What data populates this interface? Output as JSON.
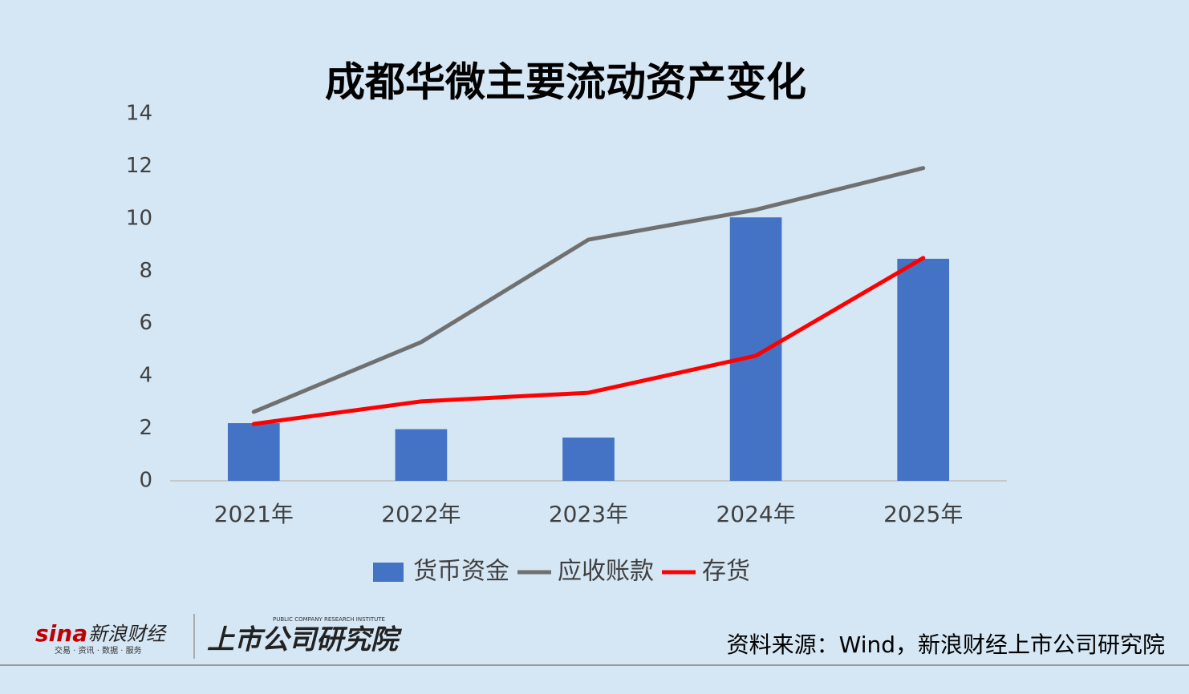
{
  "chart_data": {
    "type": "bar",
    "title": "成都华微主要流动资产变化",
    "categories": [
      "2021年",
      "2022年",
      "2023年",
      "2024年",
      "2025年"
    ],
    "series": [
      {
        "name": "货币资金",
        "type": "bar",
        "color": "#4472c4",
        "values": [
          2.2,
          1.97,
          1.65,
          10.05,
          8.47
        ]
      },
      {
        "name": "应收账款",
        "type": "line",
        "color": "#707070",
        "values": [
          2.63,
          5.29,
          9.2,
          10.34,
          11.93
        ]
      },
      {
        "name": "存货",
        "type": "line",
        "color": "#ff0000",
        "values": [
          2.17,
          3.03,
          3.36,
          4.77,
          8.5
        ]
      }
    ],
    "ylim": [
      0,
      14
    ],
    "yticks": [
      0,
      2,
      4,
      6,
      8,
      10,
      12,
      14
    ],
    "grid": false,
    "legend": "bottom"
  },
  "footer": {
    "source": "资料来源：Wind，新浪财经上市公司研究院",
    "sina_logo": "sina",
    "sina_name": "新浪财经",
    "sina_slogan": "交易 · 资讯 · 数据 · 服务",
    "institute_name": "上市公司研究院",
    "institute_english": "PUBLIC COMPANY RESEARCH INSTITUTE"
  }
}
